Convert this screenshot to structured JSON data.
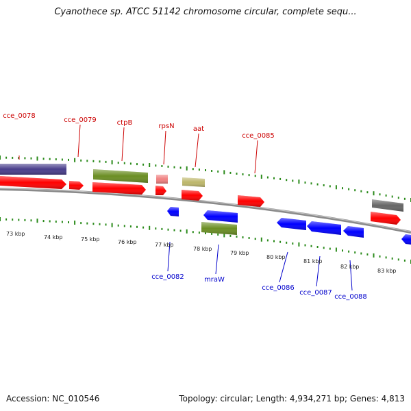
{
  "title": "Cyanothece sp. ATCC 51142 chromosome circular, complete sequ...",
  "footer": {
    "accession": "Accession: NC_010546",
    "summary": "Topology: circular; Length: 4,934,271 bp; Genes: 4,813"
  },
  "colors": {
    "cds_forward": "#ff0000",
    "cds_reverse": "#0000ff",
    "gene_forward_olive": "#6b8e23",
    "gene_forward_purple": "#483d8b",
    "gene_khaki": "#bdb76b",
    "gene_pink": "#f08080",
    "gene_gray": "#666666",
    "tick_color": "#2a8a1a",
    "label_forward": "#cc0000",
    "label_reverse": "#0000cc"
  },
  "ticks": [
    "73 kbp",
    "74 kbp",
    "75 kbp",
    "76 kbp",
    "77 kbp",
    "78 kbp",
    "79 kbp",
    "80 kbp",
    "81 kbp",
    "82 kbp",
    "83 kbp"
  ],
  "gene_labels_forward": [
    "cce_0078",
    "cce_0079",
    "ctpB",
    "rpsN",
    "aat",
    "cce_0085"
  ],
  "gene_labels_reverse": [
    "cce_0082",
    "mraW",
    "cce_0086",
    "cce_0087",
    "cce_0088"
  ]
}
